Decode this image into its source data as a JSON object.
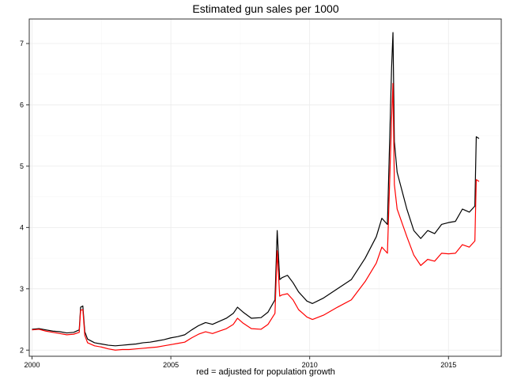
{
  "chart_data": {
    "type": "line",
    "title": "Estimated gun sales per 1000",
    "xlabel": "red = adjusted for population growth",
    "ylabel": "",
    "xlim": [
      1999.9,
      2016.9
    ],
    "ylim": [
      1.9,
      7.4
    ],
    "x_ticks": [
      2000,
      2005,
      2010,
      2015
    ],
    "x_tick_labels": [
      "2000",
      "2005",
      "2010",
      "2015"
    ],
    "y_ticks": [
      2,
      3,
      4,
      5,
      6,
      7
    ],
    "y_tick_labels": [
      "2",
      "3",
      "4",
      "5",
      "6",
      "7"
    ],
    "grid": true,
    "series": [
      {
        "color": "#000000",
        "points": [
          [
            2000.0,
            2.34
          ],
          [
            2000.25,
            2.35
          ],
          [
            2000.5,
            2.33
          ],
          [
            2000.75,
            2.31
          ],
          [
            2001.0,
            2.3
          ],
          [
            2001.25,
            2.28
          ],
          [
            2001.5,
            2.29
          ],
          [
            2001.7,
            2.33
          ],
          [
            2001.75,
            2.7
          ],
          [
            2001.83,
            2.72
          ],
          [
            2001.9,
            2.3
          ],
          [
            2002.0,
            2.18
          ],
          [
            2002.25,
            2.12
          ],
          [
            2002.5,
            2.1
          ],
          [
            2002.75,
            2.08
          ],
          [
            2003.0,
            2.07
          ],
          [
            2003.25,
            2.08
          ],
          [
            2003.5,
            2.09
          ],
          [
            2003.75,
            2.1
          ],
          [
            2004.0,
            2.12
          ],
          [
            2004.25,
            2.13
          ],
          [
            2004.5,
            2.15
          ],
          [
            2004.75,
            2.17
          ],
          [
            2005.0,
            2.2
          ],
          [
            2005.25,
            2.22
          ],
          [
            2005.5,
            2.25
          ],
          [
            2005.75,
            2.33
          ],
          [
            2006.0,
            2.4
          ],
          [
            2006.25,
            2.45
          ],
          [
            2006.5,
            2.42
          ],
          [
            2006.75,
            2.47
          ],
          [
            2007.0,
            2.52
          ],
          [
            2007.25,
            2.6
          ],
          [
            2007.4,
            2.7
          ],
          [
            2007.6,
            2.62
          ],
          [
            2007.9,
            2.52
          ],
          [
            2008.25,
            2.53
          ],
          [
            2008.5,
            2.62
          ],
          [
            2008.75,
            2.82
          ],
          [
            2008.83,
            3.95
          ],
          [
            2008.92,
            3.15
          ],
          [
            2009.0,
            3.18
          ],
          [
            2009.2,
            3.22
          ],
          [
            2009.4,
            3.1
          ],
          [
            2009.6,
            2.95
          ],
          [
            2009.9,
            2.8
          ],
          [
            2010.1,
            2.76
          ],
          [
            2010.5,
            2.85
          ],
          [
            2011.0,
            3.0
          ],
          [
            2011.5,
            3.15
          ],
          [
            2012.0,
            3.5
          ],
          [
            2012.4,
            3.85
          ],
          [
            2012.6,
            4.15
          ],
          [
            2012.8,
            4.05
          ],
          [
            2012.95,
            6.6
          ],
          [
            2013.0,
            7.18
          ],
          [
            2013.05,
            5.4
          ],
          [
            2013.15,
            4.9
          ],
          [
            2013.5,
            4.3
          ],
          [
            2013.75,
            3.95
          ],
          [
            2014.0,
            3.82
          ],
          [
            2014.25,
            3.95
          ],
          [
            2014.5,
            3.9
          ],
          [
            2014.75,
            4.05
          ],
          [
            2015.0,
            4.08
          ],
          [
            2015.25,
            4.1
          ],
          [
            2015.5,
            4.3
          ],
          [
            2015.75,
            4.25
          ],
          [
            2015.95,
            4.35
          ],
          [
            2016.0,
            5.48
          ],
          [
            2016.1,
            5.45
          ]
        ]
      },
      {
        "color": "#ff0000",
        "points": [
          [
            2000.0,
            2.33
          ],
          [
            2000.25,
            2.34
          ],
          [
            2000.5,
            2.31
          ],
          [
            2000.75,
            2.29
          ],
          [
            2001.0,
            2.27
          ],
          [
            2001.25,
            2.25
          ],
          [
            2001.5,
            2.26
          ],
          [
            2001.7,
            2.29
          ],
          [
            2001.75,
            2.65
          ],
          [
            2001.83,
            2.66
          ],
          [
            2001.9,
            2.24
          ],
          [
            2002.0,
            2.12
          ],
          [
            2002.25,
            2.07
          ],
          [
            2002.5,
            2.05
          ],
          [
            2002.75,
            2.02
          ],
          [
            2003.0,
            2.0
          ],
          [
            2003.25,
            2.01
          ],
          [
            2003.5,
            2.01
          ],
          [
            2003.75,
            2.02
          ],
          [
            2004.0,
            2.03
          ],
          [
            2004.25,
            2.04
          ],
          [
            2004.5,
            2.05
          ],
          [
            2004.75,
            2.07
          ],
          [
            2005.0,
            2.09
          ],
          [
            2005.25,
            2.11
          ],
          [
            2005.5,
            2.13
          ],
          [
            2005.75,
            2.2
          ],
          [
            2006.0,
            2.26
          ],
          [
            2006.25,
            2.3
          ],
          [
            2006.5,
            2.27
          ],
          [
            2006.75,
            2.31
          ],
          [
            2007.0,
            2.35
          ],
          [
            2007.25,
            2.42
          ],
          [
            2007.4,
            2.52
          ],
          [
            2007.6,
            2.44
          ],
          [
            2007.9,
            2.35
          ],
          [
            2008.25,
            2.34
          ],
          [
            2008.5,
            2.42
          ],
          [
            2008.75,
            2.6
          ],
          [
            2008.83,
            3.62
          ],
          [
            2008.92,
            2.88
          ],
          [
            2009.0,
            2.9
          ],
          [
            2009.2,
            2.92
          ],
          [
            2009.4,
            2.82
          ],
          [
            2009.6,
            2.66
          ],
          [
            2009.9,
            2.54
          ],
          [
            2010.1,
            2.5
          ],
          [
            2010.5,
            2.57
          ],
          [
            2011.0,
            2.7
          ],
          [
            2011.5,
            2.82
          ],
          [
            2012.0,
            3.12
          ],
          [
            2012.4,
            3.42
          ],
          [
            2012.6,
            3.68
          ],
          [
            2012.8,
            3.58
          ],
          [
            2012.95,
            5.75
          ],
          [
            2013.0,
            6.35
          ],
          [
            2013.05,
            4.7
          ],
          [
            2013.15,
            4.3
          ],
          [
            2013.5,
            3.85
          ],
          [
            2013.75,
            3.55
          ],
          [
            2014.0,
            3.38
          ],
          [
            2014.25,
            3.48
          ],
          [
            2014.5,
            3.45
          ],
          [
            2014.75,
            3.58
          ],
          [
            2015.0,
            3.57
          ],
          [
            2015.25,
            3.58
          ],
          [
            2015.5,
            3.72
          ],
          [
            2015.75,
            3.68
          ],
          [
            2015.95,
            3.78
          ],
          [
            2016.0,
            4.78
          ],
          [
            2016.1,
            4.75
          ]
        ]
      }
    ]
  }
}
